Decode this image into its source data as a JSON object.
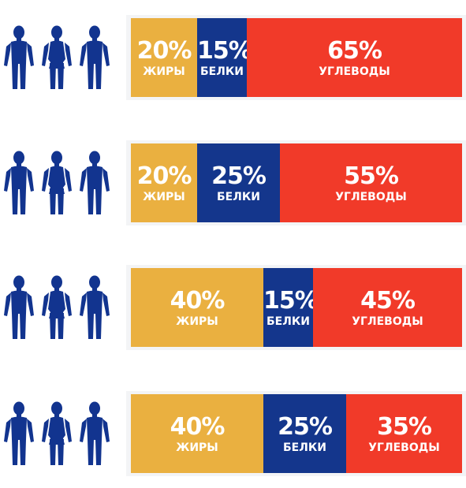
{
  "colors": {
    "fat": "#eab040",
    "protein": "#14368c",
    "carbs": "#f13a29",
    "person": "#12348f"
  },
  "chart_data": {
    "type": "bar",
    "stacked": true,
    "categories": [
      "1",
      "2",
      "3",
      "4"
    ],
    "series": [
      {
        "name": "ЖИРЫ",
        "values": [
          20,
          20,
          40,
          40
        ],
        "color": "#eab040"
      },
      {
        "name": "БЕЛКИ",
        "values": [
          15,
          25,
          15,
          25
        ],
        "color": "#14368c"
      },
      {
        "name": "УГЛЕВОДЫ",
        "values": [
          65,
          55,
          45,
          35
        ],
        "color": "#f13a29"
      }
    ],
    "value_suffix": "%",
    "legend": "none",
    "grid": false
  },
  "rows": [
    {
      "segments": [
        {
          "pct": "20%",
          "label": "ЖИРЫ"
        },
        {
          "pct": "15%",
          "label": "БЕЛКИ"
        },
        {
          "pct": "65%",
          "label": "УГЛЕВОДЫ"
        }
      ]
    },
    {
      "segments": [
        {
          "pct": "20%",
          "label": "ЖИРЫ"
        },
        {
          "pct": "25%",
          "label": "БЕЛКИ"
        },
        {
          "pct": "55%",
          "label": "УГЛЕВОДЫ"
        }
      ]
    },
    {
      "segments": [
        {
          "pct": "40%",
          "label": "ЖИРЫ"
        },
        {
          "pct": "15%",
          "label": "БЕЛКИ"
        },
        {
          "pct": "45%",
          "label": "УГЛЕВОДЫ"
        }
      ]
    },
    {
      "segments": [
        {
          "pct": "40%",
          "label": "ЖИРЫ"
        },
        {
          "pct": "25%",
          "label": "БЕЛКИ"
        },
        {
          "pct": "35%",
          "label": "УГЛЕВОДЫ"
        }
      ]
    }
  ],
  "people_icons": [
    "male-figure-icon",
    "female-figure-icon",
    "male-figure-icon"
  ]
}
